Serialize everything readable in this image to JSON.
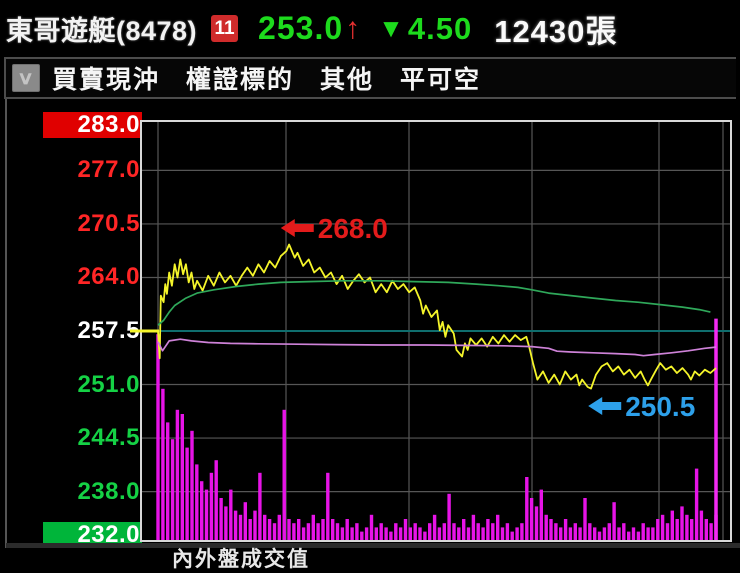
{
  "header": {
    "title": "東哥遊艇(8478)",
    "badge": "11",
    "price": "253.0",
    "tick_arrow": "↑",
    "change_icon": "▼",
    "change": "4.50",
    "volume": "12430張"
  },
  "tabbar": {
    "dropdown_icon": "chevron-down",
    "tabs": [
      "買賣現沖",
      "權證標的",
      "其他",
      "平可空"
    ]
  },
  "price_axis": {
    "labels": [
      {
        "text": "283.0",
        "style": "limit-up"
      },
      {
        "text": "277.0",
        "style": "up"
      },
      {
        "text": "270.5",
        "style": "up"
      },
      {
        "text": "264.0",
        "style": "up"
      },
      {
        "text": "257.5",
        "style": "ref"
      },
      {
        "text": "251.0",
        "style": "down"
      },
      {
        "text": "244.5",
        "style": "down"
      },
      {
        "text": "238.0",
        "style": "down"
      },
      {
        "text": "232.0",
        "style": "limit-down"
      }
    ]
  },
  "footer": {
    "label": "內外盤成交值"
  },
  "colors": {
    "up_red": "#ff2626",
    "down_green": "#15d145",
    "price_green": "#1ddb1d",
    "limit_up_bg": "#e00000",
    "limit_down_bg": "#00b53a",
    "badge_bg": "#cf2b2b",
    "grid": "#565656",
    "plot_border": "#d9d9d9"
  },
  "chart_data": {
    "type": "line",
    "title": "intraday price/volume (09:00–13:30)",
    "ylim": [
      232.0,
      283.0
    ],
    "ref_price": 257.5,
    "grid_prices": [
      277.0,
      270.5,
      264.0,
      257.5,
      251.0,
      244.5,
      238.0
    ],
    "grid_color": "#565656",
    "ref_line_color": "#0f6e6e",
    "high_annotation": {
      "text": "268.0",
      "value": 268.0,
      "color": "#e31b1b",
      "t": 0.22,
      "price": 270.0
    },
    "low_annotation": {
      "text": "250.5",
      "value": 250.5,
      "color": "#2da0ea",
      "t": 0.771,
      "price": 248.4
    },
    "series": [
      {
        "name": "price",
        "color": "#f4f42a",
        "width": 1.8,
        "points": [
          [
            0,
            257.5
          ],
          [
            0.003,
            254.2
          ],
          [
            0.005,
            261.8
          ],
          [
            0.01,
            261.0
          ],
          [
            0.013,
            263.2
          ],
          [
            0.016,
            262.0
          ],
          [
            0.02,
            264.6
          ],
          [
            0.025,
            263.0
          ],
          [
            0.03,
            265.6
          ],
          [
            0.035,
            264.0
          ],
          [
            0.04,
            266.2
          ],
          [
            0.045,
            264.4
          ],
          [
            0.05,
            265.6
          ],
          [
            0.055,
            263.4
          ],
          [
            0.06,
            264.6
          ],
          [
            0.065,
            262.6
          ],
          [
            0.07,
            263.6
          ],
          [
            0.08,
            262.4
          ],
          [
            0.09,
            264.2
          ],
          [
            0.1,
            263.0
          ],
          [
            0.11,
            264.6
          ],
          [
            0.12,
            263.4
          ],
          [
            0.13,
            264.2
          ],
          [
            0.14,
            263.0
          ],
          [
            0.15,
            264.2
          ],
          [
            0.16,
            265.2
          ],
          [
            0.17,
            264.2
          ],
          [
            0.18,
            265.6
          ],
          [
            0.19,
            264.6
          ],
          [
            0.2,
            266.0
          ],
          [
            0.21,
            265.2
          ],
          [
            0.22,
            266.6
          ],
          [
            0.23,
            267.2
          ],
          [
            0.235,
            268.0
          ],
          [
            0.245,
            266.4
          ],
          [
            0.25,
            267.0
          ],
          [
            0.26,
            265.4
          ],
          [
            0.27,
            266.2
          ],
          [
            0.28,
            264.6
          ],
          [
            0.29,
            265.2
          ],
          [
            0.3,
            264.0
          ],
          [
            0.31,
            264.6
          ],
          [
            0.32,
            263.2
          ],
          [
            0.33,
            264.2
          ],
          [
            0.34,
            262.6
          ],
          [
            0.35,
            263.6
          ],
          [
            0.36,
            264.4
          ],
          [
            0.37,
            263.4
          ],
          [
            0.38,
            264.0
          ],
          [
            0.39,
            262.2
          ],
          [
            0.4,
            263.2
          ],
          [
            0.41,
            262.2
          ],
          [
            0.42,
            263.6
          ],
          [
            0.43,
            262.6
          ],
          [
            0.44,
            263.2
          ],
          [
            0.45,
            262.2
          ],
          [
            0.46,
            262.8
          ],
          [
            0.47,
            261.2
          ],
          [
            0.475,
            259.6
          ],
          [
            0.48,
            260.6
          ],
          [
            0.49,
            259.2
          ],
          [
            0.5,
            260.0
          ],
          [
            0.505,
            257.6
          ],
          [
            0.51,
            258.6
          ],
          [
            0.515,
            256.8
          ],
          [
            0.52,
            258.2
          ],
          [
            0.53,
            257.2
          ],
          [
            0.535,
            255.2
          ],
          [
            0.545,
            254.4
          ],
          [
            0.55,
            256.0
          ],
          [
            0.555,
            255.2
          ],
          [
            0.56,
            256.6
          ],
          [
            0.57,
            255.8
          ],
          [
            0.58,
            256.6
          ],
          [
            0.59,
            255.6
          ],
          [
            0.6,
            256.8
          ],
          [
            0.61,
            256.0
          ],
          [
            0.62,
            257.0
          ],
          [
            0.63,
            256.2
          ],
          [
            0.64,
            257.0
          ],
          [
            0.65,
            256.4
          ],
          [
            0.66,
            256.8
          ],
          [
            0.665,
            255.6
          ],
          [
            0.672,
            253.6
          ],
          [
            0.68,
            251.6
          ],
          [
            0.69,
            252.6
          ],
          [
            0.7,
            251.2
          ],
          [
            0.71,
            252.2
          ],
          [
            0.72,
            251.0
          ],
          [
            0.73,
            252.6
          ],
          [
            0.74,
            251.6
          ],
          [
            0.75,
            252.2
          ],
          [
            0.755,
            250.9
          ],
          [
            0.76,
            251.6
          ],
          [
            0.77,
            250.7
          ],
          [
            0.776,
            250.5
          ],
          [
            0.785,
            252.2
          ],
          [
            0.795,
            253.2
          ],
          [
            0.805,
            253.6
          ],
          [
            0.815,
            252.6
          ],
          [
            0.825,
            253.2
          ],
          [
            0.835,
            252.2
          ],
          [
            0.845,
            252.8
          ],
          [
            0.855,
            251.8
          ],
          [
            0.865,
            252.6
          ],
          [
            0.872,
            251.6
          ],
          [
            0.878,
            250.9
          ],
          [
            0.885,
            251.8
          ],
          [
            0.893,
            252.8
          ],
          [
            0.9,
            253.6
          ],
          [
            0.91,
            252.8
          ],
          [
            0.92,
            253.2
          ],
          [
            0.93,
            252.4
          ],
          [
            0.94,
            253.0
          ],
          [
            0.95,
            252.2
          ],
          [
            0.955,
            251.6
          ],
          [
            0.962,
            252.6
          ],
          [
            0.97,
            252.1
          ],
          [
            0.98,
            252.8
          ],
          [
            0.99,
            252.4
          ],
          [
            1,
            253.0
          ]
        ]
      },
      {
        "name": "trend",
        "color": "#2fa85a",
        "width": 1.7,
        "points": [
          [
            0,
            258.2
          ],
          [
            0.01,
            258.8
          ],
          [
            0.02,
            259.8
          ],
          [
            0.03,
            260.6
          ],
          [
            0.05,
            261.5
          ],
          [
            0.07,
            262.1
          ],
          [
            0.1,
            262.5
          ],
          [
            0.14,
            262.9
          ],
          [
            0.18,
            263.2
          ],
          [
            0.22,
            263.4
          ],
          [
            0.27,
            263.5
          ],
          [
            0.33,
            263.6
          ],
          [
            0.4,
            263.6
          ],
          [
            0.46,
            263.5
          ],
          [
            0.52,
            263.4
          ],
          [
            0.57,
            263.2
          ],
          [
            0.61,
            263.0
          ],
          [
            0.645,
            262.8
          ],
          [
            0.67,
            262.5
          ],
          [
            0.7,
            262.1
          ],
          [
            0.74,
            261.8
          ],
          [
            0.78,
            261.5
          ],
          [
            0.82,
            261.2
          ],
          [
            0.86,
            261.0
          ],
          [
            0.9,
            260.7
          ],
          [
            0.94,
            260.4
          ],
          [
            0.97,
            260.1
          ],
          [
            0.99,
            259.8
          ]
        ]
      },
      {
        "name": "average",
        "color": "#ce82d8",
        "width": 1.7,
        "points": [
          [
            0,
            256.2
          ],
          [
            0.008,
            255.1
          ],
          [
            0.02,
            256.3
          ],
          [
            0.04,
            256.5
          ],
          [
            0.06,
            256.3
          ],
          [
            0.09,
            256.1
          ],
          [
            0.13,
            256.0
          ],
          [
            0.18,
            255.95
          ],
          [
            0.25,
            255.9
          ],
          [
            0.32,
            255.85
          ],
          [
            0.4,
            255.8
          ],
          [
            0.48,
            255.8
          ],
          [
            0.55,
            255.75
          ],
          [
            0.62,
            255.7
          ],
          [
            0.67,
            255.6
          ],
          [
            0.7,
            255.4
          ],
          [
            0.715,
            255.05
          ],
          [
            0.74,
            254.95
          ],
          [
            0.78,
            254.85
          ],
          [
            0.82,
            254.75
          ],
          [
            0.855,
            254.65
          ],
          [
            0.87,
            254.5
          ],
          [
            0.89,
            254.65
          ],
          [
            0.92,
            254.85
          ],
          [
            0.95,
            255.1
          ],
          [
            0.98,
            255.4
          ],
          [
            1,
            255.55
          ]
        ]
      }
    ],
    "volume": {
      "color": "#e714e7",
      "bars": [
        0.49,
        0.36,
        0.28,
        0.24,
        0.31,
        0.3,
        0.22,
        0.26,
        0.18,
        0.14,
        0.12,
        0.16,
        0.19,
        0.1,
        0.08,
        0.12,
        0.07,
        0.06,
        0.09,
        0.05,
        0.07,
        0.16,
        0.06,
        0.05,
        0.04,
        0.06,
        0.31,
        0.05,
        0.04,
        0.05,
        0.03,
        0.04,
        0.06,
        0.04,
        0.05,
        0.16,
        0.05,
        0.04,
        0.03,
        0.05,
        0.03,
        0.04,
        0.02,
        0.03,
        0.06,
        0.03,
        0.04,
        0.03,
        0.02,
        0.04,
        0.03,
        0.05,
        0.03,
        0.04,
        0.03,
        0.02,
        0.04,
        0.06,
        0.03,
        0.04,
        0.11,
        0.04,
        0.03,
        0.05,
        0.03,
        0.06,
        0.04,
        0.03,
        0.05,
        0.04,
        0.06,
        0.03,
        0.04,
        0.02,
        0.03,
        0.04,
        0.15,
        0.1,
        0.08,
        0.12,
        0.06,
        0.05,
        0.04,
        0.03,
        0.05,
        0.03,
        0.04,
        0.03,
        0.1,
        0.04,
        0.03,
        0.02,
        0.03,
        0.04,
        0.09,
        0.03,
        0.04,
        0.02,
        0.03,
        0.02,
        0.04,
        0.03,
        0.03,
        0.05,
        0.06,
        0.04,
        0.07,
        0.05,
        0.08,
        0.06,
        0.05,
        0.17,
        0.07,
        0.05,
        0.04,
        0.06
      ]
    },
    "cursor": {
      "t": 1.0,
      "top_price": 259.0,
      "color": "#f32af3"
    },
    "open_tick_price": 257.5
  }
}
